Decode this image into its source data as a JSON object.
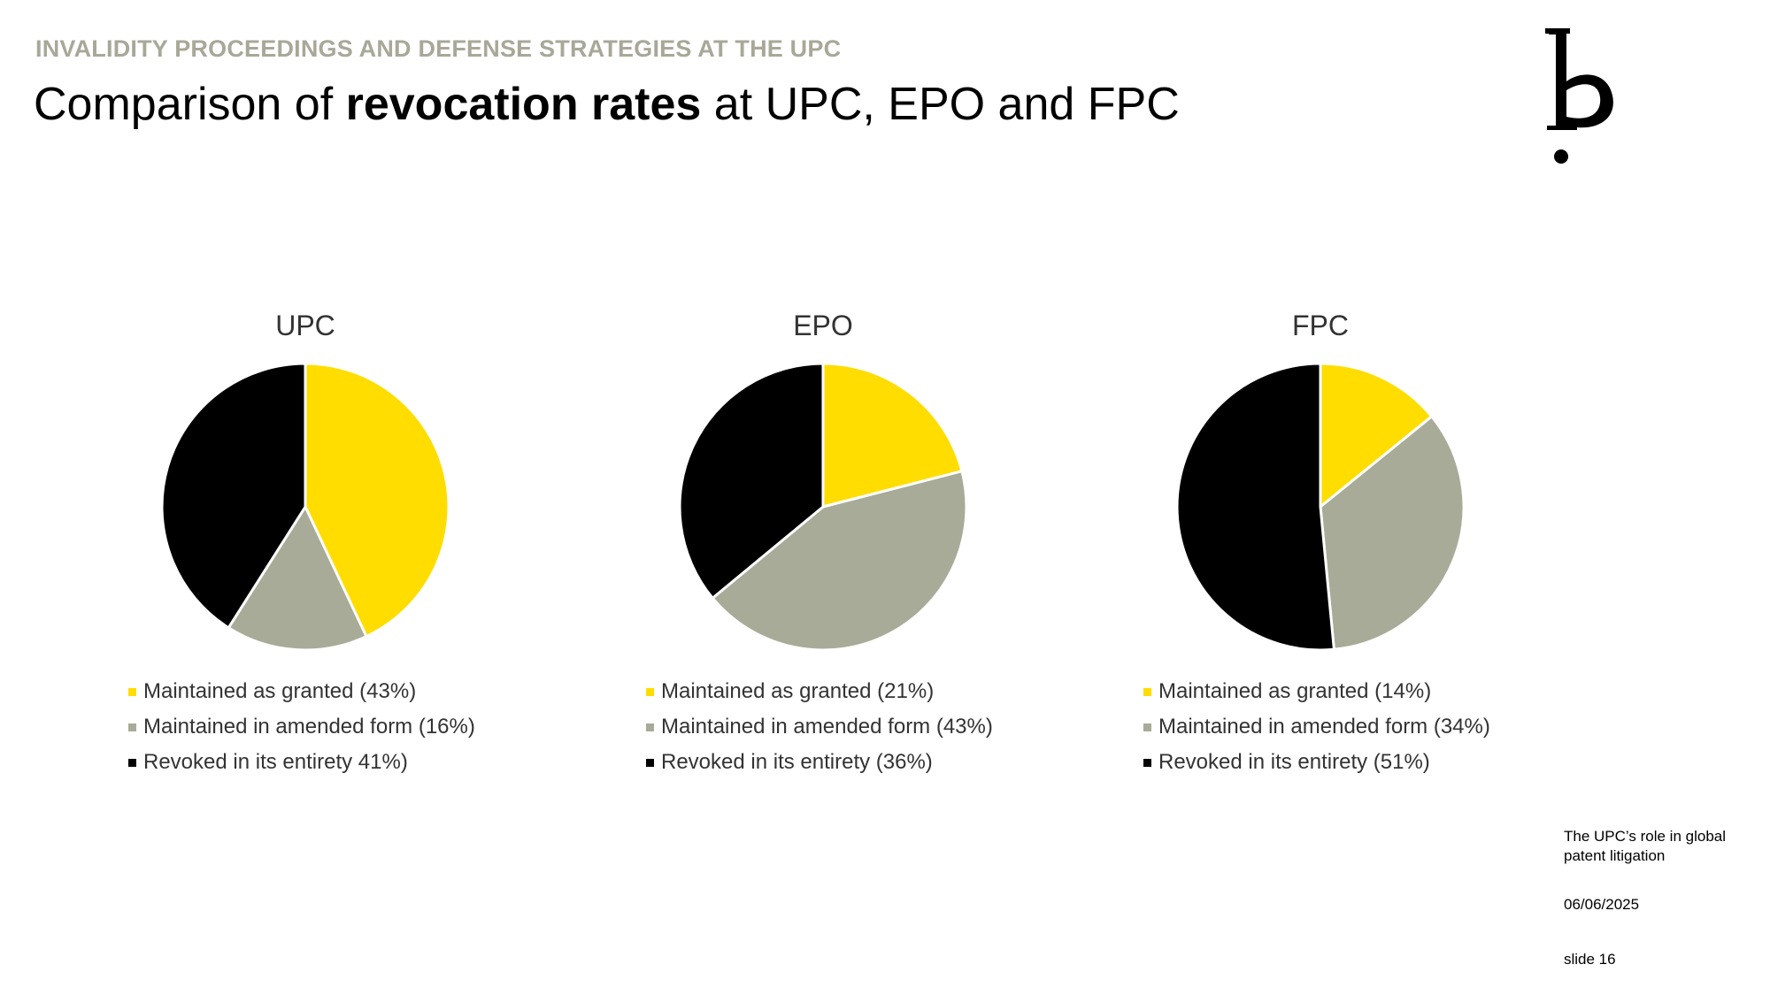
{
  "header": {
    "kicker": "INVALIDITY PROCEEDINGS AND DEFENSE STRATEGIES AT THE UPC",
    "title_pre": "Comparison of ",
    "title_bold": "revocation rates",
    "title_post": " at UPC, EPO and FPC"
  },
  "colors": {
    "maintained_as_granted": "#ffdd00",
    "maintained_amended": "#a8ab98",
    "revoked": "#000000"
  },
  "chart_data": [
    {
      "type": "pie",
      "title": "UPC",
      "slices": [
        {
          "label": "Maintained as granted (43%)",
          "value": 43,
          "color": "#ffdd00"
        },
        {
          "label": "Maintained in amended form (16%)",
          "value": 16,
          "color": "#a8ab98"
        },
        {
          "label": "Revoked in its entirety 41%)",
          "value": 41,
          "color": "#000000"
        }
      ],
      "legend_position": "bottom"
    },
    {
      "type": "pie",
      "title": "EPO",
      "slices": [
        {
          "label": "Maintained as granted (21%)",
          "value": 21,
          "color": "#ffdd00"
        },
        {
          "label": "Maintained in amended form (43%)",
          "value": 43,
          "color": "#a8ab98"
        },
        {
          "label": "Revoked in its entirety (36%)",
          "value": 36,
          "color": "#000000"
        }
      ],
      "legend_position": "bottom"
    },
    {
      "type": "pie",
      "title": "FPC",
      "slices": [
        {
          "label": "Maintained as granted (14%)",
          "value": 14,
          "color": "#ffdd00"
        },
        {
          "label": "Maintained in amended form (34%)",
          "value": 34,
          "color": "#a8ab98"
        },
        {
          "label": "Revoked in its entirety (51%)",
          "value": 51,
          "color": "#000000"
        }
      ],
      "legend_position": "bottom"
    }
  ],
  "footer": {
    "subtitle_line1": "The UPC’s role in global",
    "subtitle_line2": "patent litigation",
    "date": "06/06/2025",
    "slide": "slide 16"
  }
}
